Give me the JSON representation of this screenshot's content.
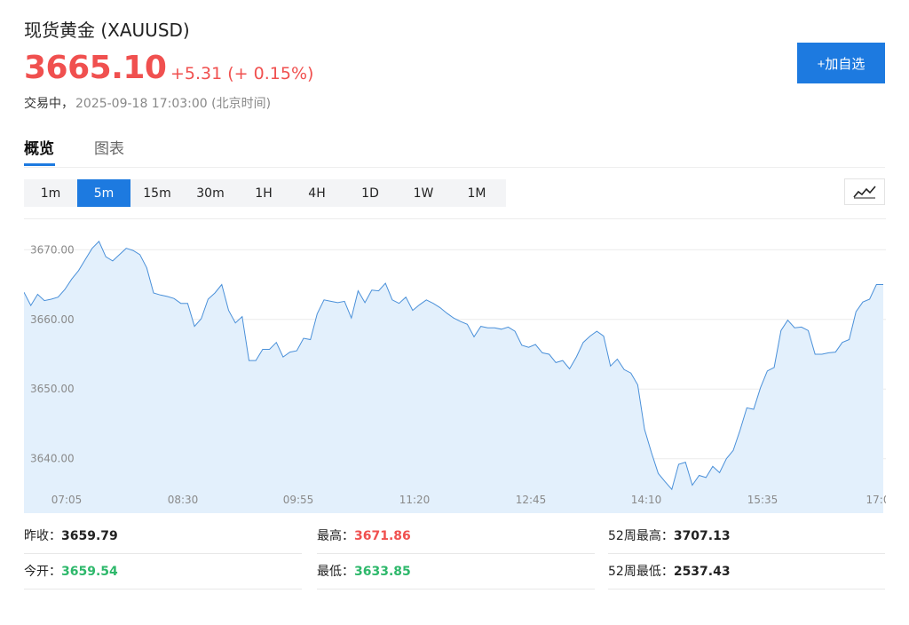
{
  "header": {
    "title": "现货黄金 (XAUUSD)",
    "price": "3665.10",
    "change": "+5.31 (+ 0.15%)",
    "status": "交易中，",
    "timestamp": "2025-09-18 17:03:00 (北京时间)",
    "add_label": "+加自选",
    "accent_color": "#1d7ae0",
    "up_color": "#f0504f",
    "down_color": "#2eb86b"
  },
  "tabs": [
    {
      "label": "概览",
      "active": true
    },
    {
      "label": "图表",
      "active": false
    }
  ],
  "intervals": [
    {
      "label": "1m",
      "active": false
    },
    {
      "label": "5m",
      "active": true
    },
    {
      "label": "15m",
      "active": false
    },
    {
      "label": "30m",
      "active": false
    },
    {
      "label": "1H",
      "active": false
    },
    {
      "label": "4H",
      "active": false
    },
    {
      "label": "1D",
      "active": false
    },
    {
      "label": "1W",
      "active": false
    },
    {
      "label": "1M",
      "active": false
    }
  ],
  "chart_type_icon": "line-chart-icon",
  "chart_data": {
    "type": "area",
    "y_ticks": [
      "3670.00",
      "3660.00",
      "3650.00",
      "3640.00"
    ],
    "x_ticks": [
      "07:05",
      "08:30",
      "09:55",
      "11:20",
      "12:45",
      "14:10",
      "15:35",
      "17:0"
    ],
    "ylim": [
      3635.5,
      3674.5
    ],
    "line_color": "#4a90d9",
    "fill_color": "#e3f0fc",
    "values": [
      3663.9,
      3662.0,
      3663.6,
      3662.7,
      3662.9,
      3663.2,
      3664.3,
      3665.8,
      3667.0,
      3668.6,
      3670.2,
      3671.2,
      3669.0,
      3668.4,
      3669.3,
      3670.2,
      3669.9,
      3669.3,
      3667.4,
      3663.8,
      3663.5,
      3663.3,
      3663.0,
      3662.3,
      3662.3,
      3659.0,
      3660.1,
      3662.9,
      3663.8,
      3665.0,
      3661.3,
      3659.5,
      3660.4,
      3654.1,
      3654.1,
      3655.7,
      3655.7,
      3656.7,
      3654.6,
      3655.3,
      3655.5,
      3657.3,
      3657.1,
      3660.8,
      3662.8,
      3662.6,
      3662.4,
      3662.6,
      3660.2,
      3664.1,
      3662.4,
      3664.2,
      3664.1,
      3665.2,
      3662.8,
      3662.3,
      3663.2,
      3661.3,
      3662.1,
      3662.8,
      3662.3,
      3661.7,
      3660.9,
      3660.2,
      3659.7,
      3659.3,
      3657.5,
      3659.0,
      3658.8,
      3658.8,
      3658.6,
      3658.9,
      3658.3,
      3656.3,
      3656.0,
      3656.4,
      3655.2,
      3655.0,
      3653.8,
      3654.1,
      3652.9,
      3654.6,
      3656.7,
      3657.6,
      3658.3,
      3657.6,
      3653.3,
      3654.3,
      3652.8,
      3652.3,
      3650.6,
      3644.2,
      3640.9,
      3637.9,
      3636.7,
      3635.6,
      3639.2,
      3639.5,
      3636.2,
      3637.6,
      3637.3,
      3638.9,
      3638.0,
      3640.0,
      3641.2,
      3644.1,
      3647.3,
      3647.1,
      3650.2,
      3652.6,
      3653.1,
      3658.4,
      3659.9,
      3658.8,
      3658.9,
      3658.4,
      3655.0,
      3655.0,
      3655.2,
      3655.3,
      3656.7,
      3657.1,
      3661.1,
      3662.5,
      3662.9,
      3665.0,
      3665.0
    ]
  },
  "stats": [
    {
      "label": "昨收：",
      "value": "3659.79",
      "tone": "neutral"
    },
    {
      "label": "最高：",
      "value": "3671.86",
      "tone": "up"
    },
    {
      "label": "52周最高：",
      "value": "3707.13",
      "tone": "neutral"
    },
    {
      "label": "今开：",
      "value": "3659.54",
      "tone": "down"
    },
    {
      "label": "最低：",
      "value": "3633.85",
      "tone": "down"
    },
    {
      "label": "52周最低：",
      "value": "2537.43",
      "tone": "neutral"
    }
  ]
}
